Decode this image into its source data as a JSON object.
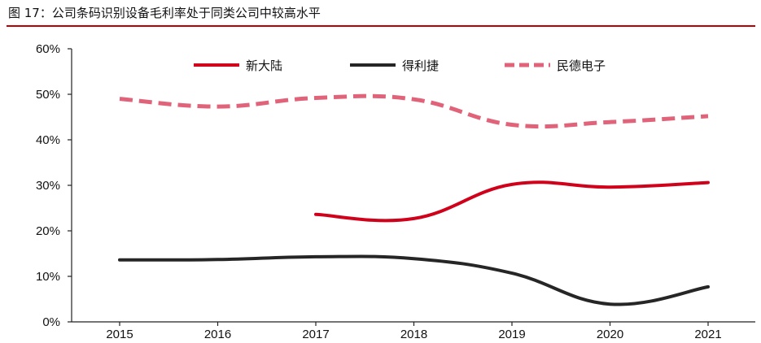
{
  "figure": {
    "title": "图 17：公司条码识别设备毛利率处于同类公司中较高水平",
    "accent_color": "#c00000"
  },
  "chart_data": {
    "type": "line",
    "title": "",
    "xlabel": "",
    "ylabel": "",
    "categories": [
      "2015",
      "2016",
      "2017",
      "2018",
      "2019",
      "2020",
      "2021"
    ],
    "ylim": [
      0,
      60
    ],
    "y_ticks": [
      "0%",
      "10%",
      "20%",
      "30%",
      "40%",
      "50%",
      "60%"
    ],
    "grid": false,
    "legend_position": "top",
    "series": [
      {
        "name": "新大陆",
        "color": "#d0021b",
        "dash": "solid",
        "values": [
          null,
          null,
          23.6,
          22.7,
          30.2,
          29.6,
          30.6
        ]
      },
      {
        "name": "得利捷",
        "color": "#262626",
        "dash": "solid",
        "values": [
          13.6,
          13.7,
          14.3,
          13.9,
          10.7,
          3.9,
          7.7
        ]
      },
      {
        "name": "民德电子",
        "color": "#e0637a",
        "dash": "dashed",
        "values": [
          49.0,
          47.3,
          49.2,
          48.9,
          43.3,
          43.9,
          45.2
        ]
      }
    ]
  }
}
